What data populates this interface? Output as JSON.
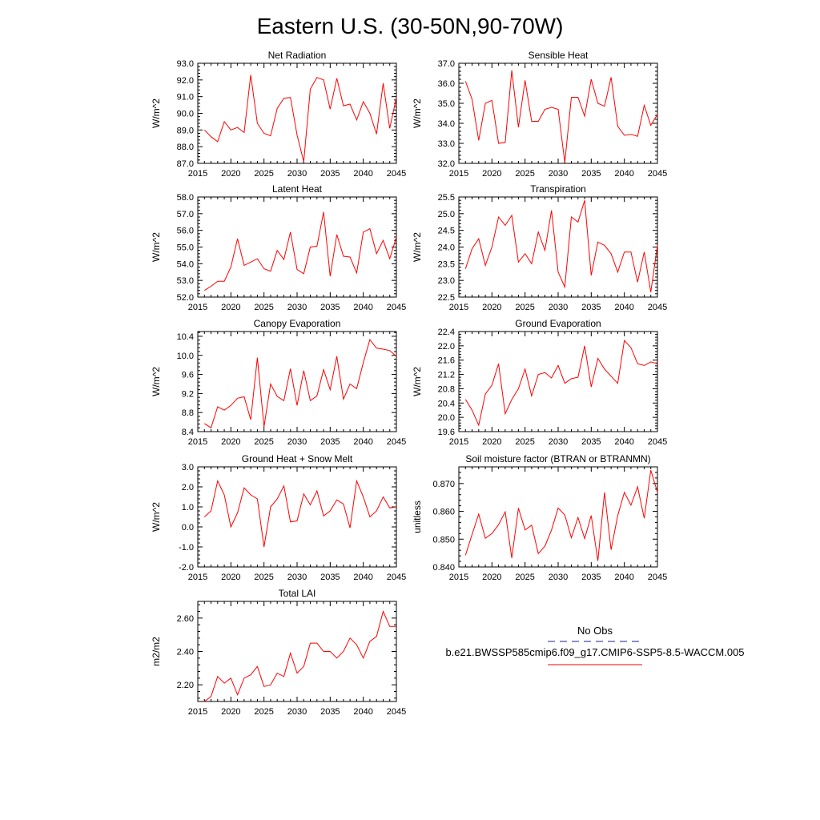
{
  "title": "Eastern U.S. (30-50N,90-70W)",
  "legend": {
    "entries": [
      {
        "label": "No Obs",
        "color": "#1f1f8f",
        "dash": true
      },
      {
        "label": "b.e21.BWSSP585cmip6.f09_g17.CMIP6-SSP5-8.5-WACCM.005",
        "color": "#ff0000",
        "dash": false
      }
    ],
    "placement": "bottom-right"
  },
  "years": [
    2016,
    2017,
    2018,
    2019,
    2020,
    2021,
    2022,
    2023,
    2024,
    2025,
    2026,
    2027,
    2028,
    2029,
    2030,
    2031,
    2032,
    2033,
    2034,
    2035,
    2036,
    2037,
    2038,
    2039,
    2040,
    2041,
    2042,
    2043,
    2044,
    2045
  ],
  "chart_data": [
    {
      "type": "line",
      "title": "Net Radiation",
      "ylabel": "W/m^2",
      "xlabel": "",
      "xlim": [
        2015,
        2045
      ],
      "xticks": [
        "2015",
        "2020",
        "2025",
        "2030",
        "2035",
        "2040",
        "2045"
      ],
      "ylim": [
        87.0,
        93.0
      ],
      "yticks": [
        "87.0",
        "88.0",
        "89.0",
        "90.0",
        "91.0",
        "92.0",
        "93.0"
      ],
      "series": [
        {
          "color": "#ff0000",
          "values": [
            89.0,
            88.6,
            88.3,
            89.5,
            89.0,
            89.15,
            88.85,
            92.3,
            89.4,
            88.8,
            88.65,
            90.3,
            90.9,
            90.95,
            88.7,
            87.1,
            91.45,
            92.15,
            92.0,
            90.25,
            92.1,
            90.45,
            90.55,
            89.6,
            90.7,
            90.0,
            88.75,
            91.8,
            89.1,
            90.95
          ]
        }
      ]
    },
    {
      "type": "line",
      "title": "Sensible Heat",
      "ylabel": "W/m^2",
      "xlabel": "",
      "xlim": [
        2015,
        2045
      ],
      "xticks": [
        "2015",
        "2020",
        "2025",
        "2030",
        "2035",
        "2040",
        "2045"
      ],
      "ylim": [
        32.0,
        37.0
      ],
      "yticks": [
        "32.0",
        "33.0",
        "34.0",
        "35.0",
        "36.0",
        "37.0"
      ],
      "series": [
        {
          "color": "#ff0000",
          "values": [
            36.1,
            35.2,
            33.15,
            35.0,
            35.15,
            33.0,
            33.05,
            36.65,
            33.8,
            36.15,
            34.1,
            34.1,
            34.7,
            34.8,
            34.7,
            32.05,
            35.3,
            35.3,
            34.35,
            36.2,
            35.0,
            34.85,
            36.3,
            33.85,
            33.4,
            33.45,
            33.35,
            34.9,
            33.9,
            34.45
          ]
        }
      ]
    },
    {
      "type": "line",
      "title": "Latent Heat",
      "ylabel": "W/m^2",
      "xlabel": "",
      "xlim": [
        2015,
        2045
      ],
      "xticks": [
        "2015",
        "2020",
        "2025",
        "2030",
        "2035",
        "2040",
        "2045"
      ],
      "ylim": [
        52.0,
        58.0
      ],
      "yticks": [
        "52.0",
        "53.0",
        "54.0",
        "55.0",
        "56.0",
        "57.0",
        "58.0"
      ],
      "series": [
        {
          "color": "#ff0000",
          "values": [
            52.4,
            52.65,
            52.95,
            52.95,
            53.8,
            55.5,
            53.9,
            54.1,
            54.3,
            53.7,
            53.55,
            54.8,
            54.25,
            55.9,
            53.65,
            53.4,
            55.0,
            55.05,
            57.1,
            53.25,
            55.75,
            54.45,
            54.4,
            53.45,
            55.9,
            56.1,
            54.6,
            55.4,
            54.3,
            55.6
          ]
        }
      ]
    },
    {
      "type": "line",
      "title": "Transpiration",
      "ylabel": "W/m^2",
      "xlabel": "",
      "xlim": [
        2015,
        2045
      ],
      "xticks": [
        "2015",
        "2020",
        "2025",
        "2030",
        "2035",
        "2040",
        "2045"
      ],
      "ylim": [
        22.5,
        25.5
      ],
      "yticks": [
        "22.5",
        "23.0",
        "23.5",
        "24.0",
        "24.5",
        "25.0",
        "25.5"
      ],
      "series": [
        {
          "color": "#ff0000",
          "values": [
            23.35,
            23.95,
            24.25,
            23.45,
            24.0,
            24.9,
            24.65,
            24.95,
            23.55,
            23.8,
            23.5,
            24.45,
            23.9,
            25.1,
            23.25,
            22.8,
            24.9,
            24.75,
            25.4,
            23.15,
            24.15,
            24.05,
            23.8,
            23.25,
            23.85,
            23.85,
            22.95,
            23.85,
            22.65,
            24.05
          ]
        }
      ]
    },
    {
      "type": "line",
      "title": "Canopy Evaporation",
      "ylabel": "W/m^2",
      "xlabel": "",
      "xlim": [
        2015,
        2045
      ],
      "xticks": [
        "2015",
        "2020",
        "2025",
        "2030",
        "2035",
        "2040",
        "2045"
      ],
      "ylim": [
        8.4,
        10.5
      ],
      "yticks": [
        "8.4",
        "8.8",
        "9.2",
        "9.6",
        "10.0",
        "10.4"
      ],
      "series": [
        {
          "color": "#ff0000",
          "values": [
            8.57,
            8.48,
            8.92,
            8.85,
            8.95,
            9.1,
            9.13,
            8.65,
            9.95,
            8.5,
            9.4,
            9.14,
            9.05,
            9.72,
            8.95,
            9.68,
            9.05,
            9.15,
            9.7,
            9.28,
            9.98,
            9.08,
            9.4,
            9.3,
            9.85,
            10.33,
            10.15,
            10.13,
            10.1,
            9.98
          ]
        }
      ]
    },
    {
      "type": "line",
      "title": "Ground Evaporation",
      "ylabel": "W/m^2",
      "xlabel": "",
      "xlim": [
        2015,
        2045
      ],
      "xticks": [
        "2015",
        "2020",
        "2025",
        "2030",
        "2035",
        "2040",
        "2045"
      ],
      "ylim": [
        19.6,
        22.4
      ],
      "yticks": [
        "19.6",
        "20.0",
        "20.4",
        "20.8",
        "21.2",
        "21.6",
        "22.0",
        "22.4"
      ],
      "series": [
        {
          "color": "#ff0000",
          "values": [
            20.5,
            20.2,
            19.78,
            20.65,
            20.9,
            21.5,
            20.1,
            20.5,
            20.8,
            21.35,
            20.6,
            21.2,
            21.25,
            21.1,
            21.45,
            20.95,
            21.08,
            21.12,
            22.0,
            20.85,
            21.65,
            21.35,
            21.15,
            20.95,
            22.15,
            21.95,
            21.5,
            21.45,
            21.55,
            21.5
          ]
        }
      ]
    },
    {
      "type": "line",
      "title": "Ground Heat + Snow Melt",
      "ylabel": "W/m^2",
      "xlabel": "",
      "xlim": [
        2015,
        2045
      ],
      "xticks": [
        "2015",
        "2020",
        "2025",
        "2030",
        "2035",
        "2040",
        "2045"
      ],
      "ylim": [
        -2.0,
        3.0
      ],
      "yticks": [
        "-2.0",
        "-1.0",
        "0.0",
        "1.0",
        "2.0",
        "3.0"
      ],
      "series": [
        {
          "color": "#ff0000",
          "values": [
            0.5,
            0.8,
            2.3,
            1.6,
            0.0,
            0.7,
            1.95,
            1.6,
            1.4,
            -1.0,
            1.0,
            1.4,
            2.05,
            0.25,
            0.3,
            1.65,
            1.1,
            1.8,
            0.55,
            0.8,
            1.35,
            1.15,
            -0.05,
            2.3,
            1.5,
            0.5,
            0.8,
            1.5,
            0.95,
            1.0
          ]
        }
      ]
    },
    {
      "type": "line",
      "title": "Soil moisture factor (BTRAN or BTRANMN)",
      "ylabel": "unitless",
      "xlabel": "",
      "xlim": [
        2015,
        2045
      ],
      "xticks": [
        "2015",
        "2020",
        "2025",
        "2030",
        "2035",
        "2040",
        "2045"
      ],
      "ylim": [
        0.84,
        0.876
      ],
      "yticks": [
        "0.840",
        "0.850",
        "0.860",
        "0.870"
      ],
      "series": [
        {
          "color": "#ff0000",
          "values": [
            0.8442,
            0.8517,
            0.859,
            0.8503,
            0.852,
            0.8552,
            0.8598,
            0.8432,
            0.8612,
            0.8533,
            0.855,
            0.8448,
            0.8475,
            0.8533,
            0.8612,
            0.8587,
            0.8505,
            0.8578,
            0.8502,
            0.8585,
            0.8422,
            0.8668,
            0.8462,
            0.8585,
            0.8668,
            0.8622,
            0.8688,
            0.8575,
            0.8748,
            0.8668
          ]
        }
      ]
    },
    {
      "type": "line",
      "title": "Total LAI",
      "ylabel": "m2/m2",
      "xlabel": "",
      "xlim": [
        2015,
        2045
      ],
      "xticks": [
        "2015",
        "2020",
        "2025",
        "2030",
        "2035",
        "2040",
        "2045"
      ],
      "ylim": [
        2.1,
        2.7
      ],
      "yticks": [
        "2.20",
        "2.40",
        "2.60"
      ],
      "series": [
        {
          "color": "#ff0000",
          "values": [
            2.1,
            2.13,
            2.25,
            2.21,
            2.24,
            2.14,
            2.24,
            2.26,
            2.31,
            2.19,
            2.2,
            2.27,
            2.25,
            2.39,
            2.27,
            2.31,
            2.45,
            2.45,
            2.4,
            2.4,
            2.36,
            2.4,
            2.48,
            2.44,
            2.36,
            2.46,
            2.49,
            2.64,
            2.55,
            2.55
          ]
        }
      ]
    }
  ]
}
